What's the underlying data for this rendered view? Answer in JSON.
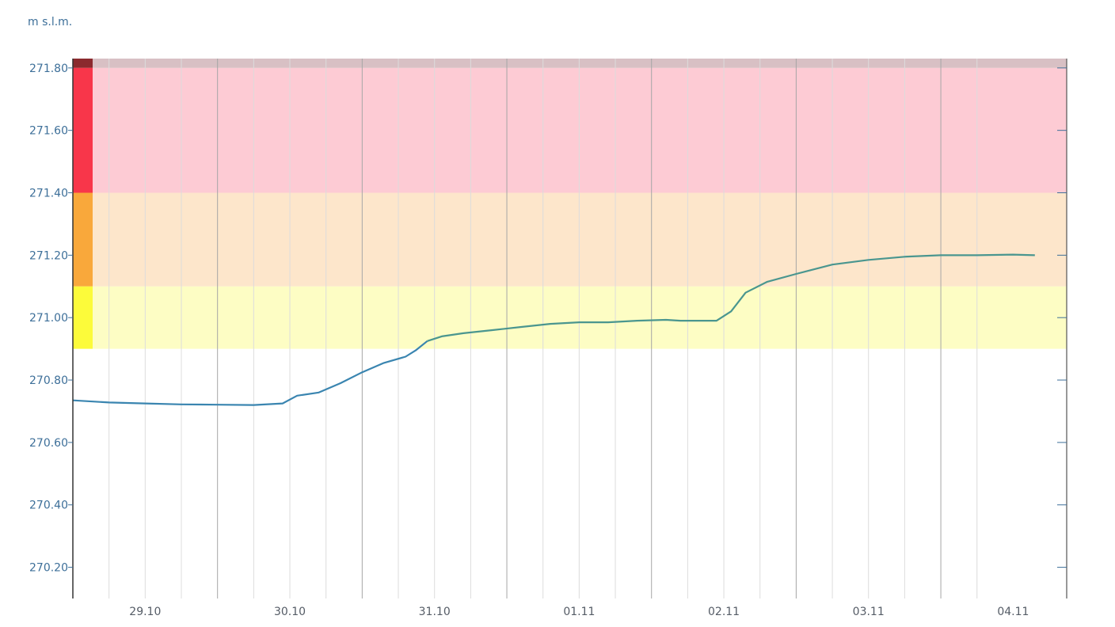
{
  "chart_data": {
    "type": "line",
    "ylabel": "m s.l.m.",
    "xlabel": "",
    "ylim": [
      270.1,
      271.83
    ],
    "xlim": [
      -0.5,
      6.37
    ],
    "y_ticks": [
      "270.20",
      "270.40",
      "270.60",
      "270.80",
      "271.00",
      "271.20",
      "271.40",
      "271.60",
      "271.80"
    ],
    "x_ticks": [
      {
        "label": "29.10",
        "x": 0
      },
      {
        "label": "30.10",
        "x": 1
      },
      {
        "label": "31.10",
        "x": 2
      },
      {
        "label": "01.11",
        "x": 3
      },
      {
        "label": "02.11",
        "x": 4
      },
      {
        "label": "03.11",
        "x": 5
      },
      {
        "label": "04.11",
        "x": 6
      }
    ],
    "threshold_bands": [
      {
        "level": "alert-dark",
        "from": 271.8,
        "to": 271.83,
        "color": "#8b2a2e",
        "fill": "#d8c0c4"
      },
      {
        "level": "red",
        "from": 271.4,
        "to": 271.8,
        "color": "#f8364a",
        "fill": "#fdcbd4"
      },
      {
        "level": "orange",
        "from": 271.1,
        "to": 271.4,
        "color": "#f9a83b",
        "fill": "#fde6cb"
      },
      {
        "level": "yellow",
        "from": 270.9,
        "to": 271.1,
        "color": "#fcfb3a",
        "fill": "#fdfdc4"
      }
    ],
    "grid": true,
    "legend": "none",
    "series": [
      {
        "color": "#3a85b0",
        "color_in_band": "#4a968f",
        "x": [
          -0.5,
          -0.25,
          0,
          0.25,
          0.5,
          0.75,
          0.95,
          1.05,
          1.2,
          1.35,
          1.5,
          1.65,
          1.8,
          1.87,
          1.95,
          2.05,
          2.2,
          2.4,
          2.6,
          2.8,
          3.0,
          3.2,
          3.4,
          3.6,
          3.7,
          3.8,
          3.95,
          4.05,
          4.15,
          4.3,
          4.5,
          4.75,
          5.0,
          5.25,
          5.5,
          5.75,
          6.0,
          6.15
        ],
        "y": [
          270.735,
          270.728,
          270.725,
          270.722,
          270.721,
          270.72,
          270.725,
          270.75,
          270.76,
          270.79,
          270.825,
          270.855,
          270.875,
          270.895,
          270.925,
          270.94,
          270.95,
          270.96,
          270.97,
          270.98,
          270.985,
          270.985,
          270.99,
          270.993,
          270.99,
          270.99,
          270.99,
          271.02,
          271.08,
          271.115,
          271.14,
          271.17,
          271.185,
          271.195,
          271.2,
          271.2,
          271.202,
          271.2
        ]
      }
    ]
  }
}
